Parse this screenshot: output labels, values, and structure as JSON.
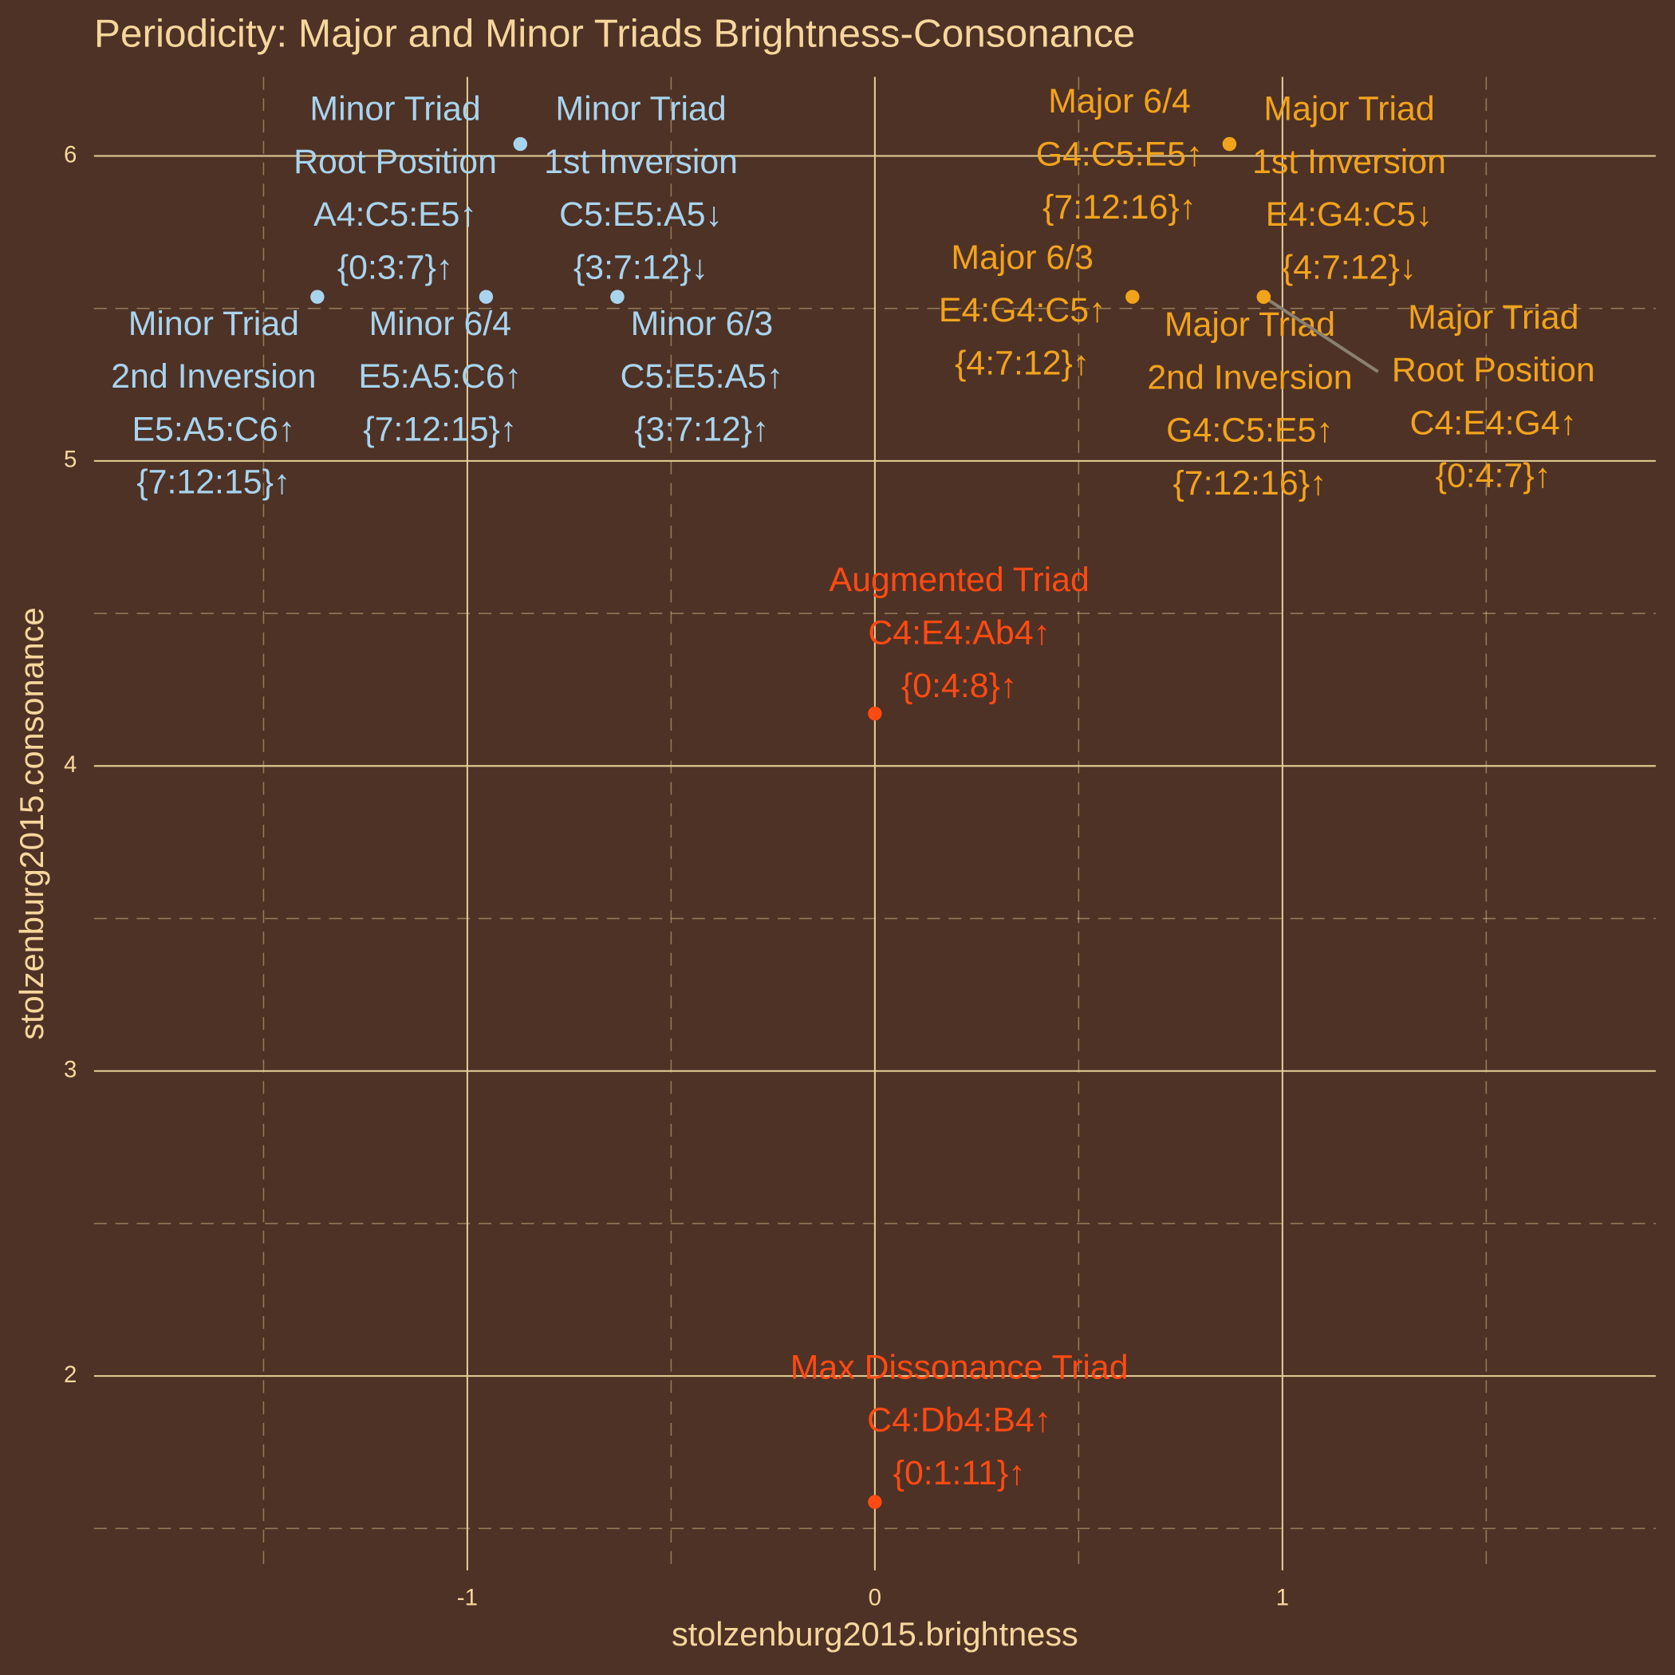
{
  "chart_data": {
    "type": "scatter",
    "title": "Periodicity: Major and Minor Triads Brightness-Consonance",
    "x_label": "stolzenburg2015.brightness",
    "y_label": "stolzenburg2015.consonance",
    "xlim": [
      -1.916,
      1.916
    ],
    "ylim": [
      1.363,
      6.259
    ],
    "xticks": [
      -1,
      0,
      1
    ],
    "yticks": [
      2,
      3,
      4,
      5,
      6
    ],
    "grid": true,
    "series": [
      {
        "color": "#a8d4ee",
        "x": [
          -0.87,
          -0.632,
          -1.368,
          -0.954,
          -0.632
        ],
        "y": [
          6.039,
          5.538,
          5.538,
          5.538,
          5.538
        ],
        "labels": [
          [
            "Minor Triad",
            "Root Position",
            "A4:C5:E5↑",
            "{0:3:7}↑"
          ],
          [
            "Minor Triad",
            "1st Inversion",
            "C5:E5:A5↓",
            "{3:7:12}↓"
          ],
          [
            "Minor Triad",
            "2nd Inversion",
            "E5:A5:C6↑",
            "{7:12:15}↑"
          ],
          [
            "Minor 6/4",
            "E5:A5:C6↑",
            "{7:12:15}↑"
          ],
          [
            "Minor 6/3",
            "C5:E5:A5↑",
            "{3:7:12}↑"
          ]
        ]
      },
      {
        "color": "#f2a31c",
        "x": [
          0.87,
          0.87,
          0.632,
          0.954,
          0.954
        ],
        "y": [
          6.039,
          6.039,
          5.538,
          5.538,
          5.538
        ],
        "labels": [
          [
            "Major 6/4",
            "G4:C5:E5↑",
            "{7:12:16}↑"
          ],
          [
            "Major Triad",
            "1st Inversion",
            "E4:G4:C5↓",
            "{4:7:12}↓"
          ],
          [
            "Major 6/3",
            "E4:G4:C5↑",
            "{4:7:12}↑"
          ],
          [
            "Major Triad",
            "2nd Inversion",
            "G4:C5:E5↑",
            "{7:12:16}↑"
          ],
          [
            "Major Triad",
            "Root Position",
            "C4:E4:G4↑",
            "{0:4:7}↑"
          ]
        ]
      },
      {
        "color": "#ff4a12",
        "x": [
          0,
          0
        ],
        "y": [
          4.172,
          1.587
        ],
        "labels": [
          [
            "Augmented Triad",
            "C4:E4:Ab4↑",
            "{0:4:8}↑"
          ],
          [
            "Max Dissonance Triad",
            "C4:Db4:B4↑",
            "{0:1:11}↑"
          ]
        ]
      }
    ]
  }
}
